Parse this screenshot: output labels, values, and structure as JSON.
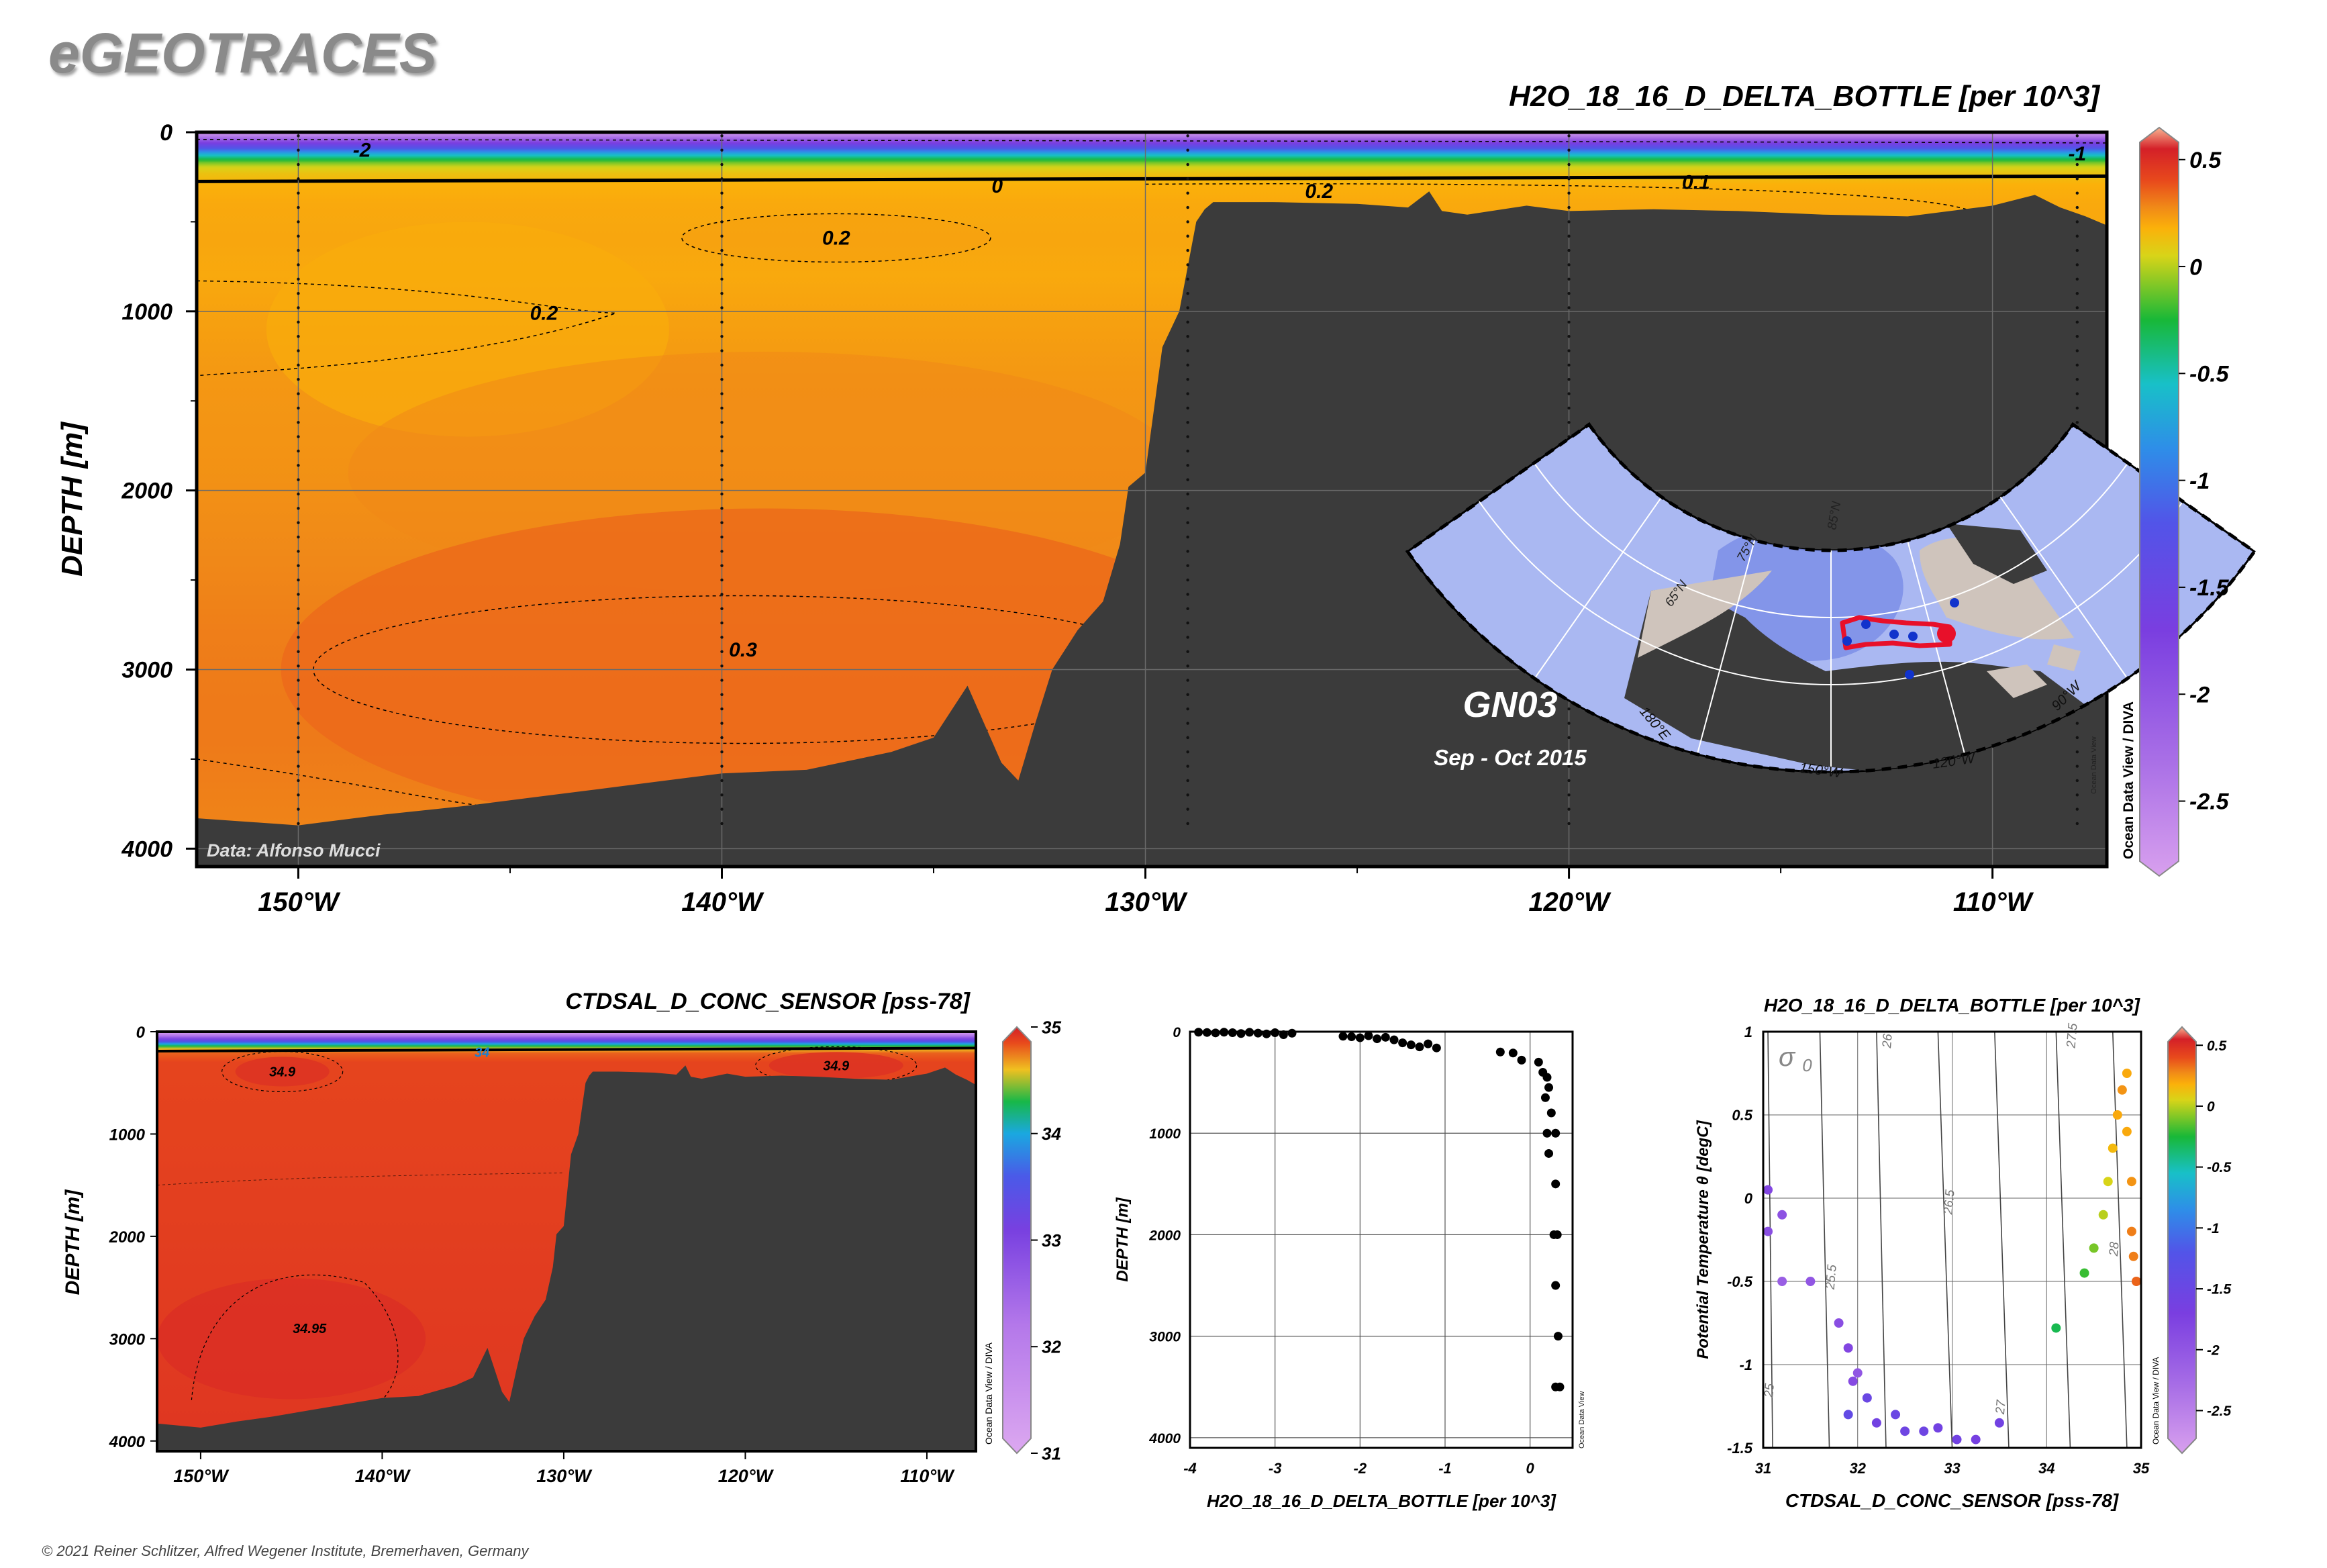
{
  "brand": "eGEOTRACES",
  "copyright": "© 2021 Reiner Schlitzer, Alfred Wegener Institute, Bremerhaven, Germany",
  "watermark": "Ocean Data View / DIVA",
  "watermark_small": "Ocean Data View",
  "colors": {
    "land": "#3b3b3b",
    "frame": "#000000",
    "grid": "#7a7a7a",
    "map_ocean": "#aab8f2",
    "map_land": "#cfc4bc",
    "map_track": "#e8102a",
    "station_dot": "#1133cc"
  },
  "colormaps": {
    "delta": {
      "stops": [
        {
          "v": -2.85,
          "c": "#d8a0ee"
        },
        {
          "v": -2.3,
          "c": "#a86ee6"
        },
        {
          "v": -1.7,
          "c": "#7a3ee0"
        },
        {
          "v": -1.2,
          "c": "#5254e8"
        },
        {
          "v": -0.85,
          "c": "#2e8ee8"
        },
        {
          "v": -0.55,
          "c": "#18c0c8"
        },
        {
          "v": -0.25,
          "c": "#18b838"
        },
        {
          "v": 0.05,
          "c": "#d8d418"
        },
        {
          "v": 0.18,
          "c": "#fbb10a"
        },
        {
          "v": 0.28,
          "c": "#f08818"
        },
        {
          "v": 0.4,
          "c": "#e84a1c"
        },
        {
          "v": 0.55,
          "c": "#d42028"
        },
        {
          "v": 0.65,
          "c": "#f8b492"
        }
      ]
    },
    "salinity": {
      "stops": [
        {
          "v": 31,
          "c": "#dca8f0"
        },
        {
          "v": 32.2,
          "c": "#b478ea"
        },
        {
          "v": 33.1,
          "c": "#7840e0"
        },
        {
          "v": 33.6,
          "c": "#4a5ae8"
        },
        {
          "v": 34.0,
          "c": "#1aa8e0"
        },
        {
          "v": 34.3,
          "c": "#18b848"
        },
        {
          "v": 34.6,
          "c": "#f0c020"
        },
        {
          "v": 34.85,
          "c": "#e84a1c"
        },
        {
          "v": 35,
          "c": "#d42028"
        }
      ]
    }
  },
  "section_main": {
    "title": "H2O_18_16_D_DELTA_BOTTLE [per 10^3]",
    "ylabel": "DEPTH [m]",
    "cruise": "GN03",
    "date": "Sep - Oct 2015",
    "data_credit": "Data: Alfonso Mucci",
    "x_ticks": [
      {
        "lon": -150,
        "label": "150°W"
      },
      {
        "lon": -140,
        "label": "140°W"
      },
      {
        "lon": -130,
        "label": "130°W"
      },
      {
        "lon": -120,
        "label": "120°W"
      },
      {
        "lon": -110,
        "label": "110°W"
      }
    ],
    "y_ticks": [
      {
        "d": 0,
        "label": "0"
      },
      {
        "d": 1000,
        "label": "1000"
      },
      {
        "d": 2000,
        "label": "2000"
      },
      {
        "d": 3000,
        "label": "3000"
      },
      {
        "d": 4000,
        "label": "4000"
      }
    ],
    "contour_labels": [
      {
        "text": "-2",
        "lon": -148.5,
        "d": 100
      },
      {
        "text": "0",
        "lon": -133.5,
        "d": 300
      },
      {
        "text": "0.2",
        "lon": -137.3,
        "d": 590
      },
      {
        "text": "0.2",
        "lon": -144.2,
        "d": 1010
      },
      {
        "text": "0.2",
        "lon": -125.9,
        "d": 330
      },
      {
        "text": "0.1",
        "lon": -117.0,
        "d": 280
      },
      {
        "text": "0.3",
        "lon": -139.5,
        "d": 2890
      },
      {
        "text": "-1",
        "lon": -108.0,
        "d": 120
      }
    ],
    "colorbar_ticks": [
      {
        "v": 0.5,
        "label": "0.5"
      },
      {
        "v": 0,
        "label": "0"
      },
      {
        "v": -0.5,
        "label": "-0.5"
      },
      {
        "v": -1,
        "label": "-1"
      },
      {
        "v": -1.5,
        "label": "-1.5"
      },
      {
        "v": -2,
        "label": "-2"
      },
      {
        "v": -2.5,
        "label": "-2.5"
      }
    ]
  },
  "inset_map": {
    "lat_labels": [
      {
        "text": "85°N"
      },
      {
        "text": "75°N"
      },
      {
        "text": "65°N"
      }
    ],
    "lon_labels": [
      {
        "text": "180°E"
      },
      {
        "text": "150°W"
      },
      {
        "text": "120°W"
      },
      {
        "text": "90°W"
      }
    ]
  },
  "section_sal": {
    "title": "CTDSAL_D_CONC_SENSOR [pss-78]",
    "ylabel": "DEPTH [m]",
    "x_ticks": [
      {
        "lon": -150,
        "label": "150°W"
      },
      {
        "lon": -140,
        "label": "140°W"
      },
      {
        "lon": -130,
        "label": "130°W"
      },
      {
        "lon": -120,
        "label": "120°W"
      },
      {
        "lon": -110,
        "label": "110°W"
      }
    ],
    "y_ticks": [
      {
        "d": 0,
        "label": "0"
      },
      {
        "d": 1000,
        "label": "1000"
      },
      {
        "d": 2000,
        "label": "2000"
      },
      {
        "d": 3000,
        "label": "3000"
      },
      {
        "d": 4000,
        "label": "4000"
      }
    ],
    "contour_labels": [
      {
        "text": "34",
        "lon": -134.5,
        "d": 200
      },
      {
        "text": "34.9",
        "lon": -145.5,
        "d": 390
      },
      {
        "text": "34.9",
        "lon": -115.0,
        "d": 330
      },
      {
        "text": "34.95",
        "lon": -144.0,
        "d": 2900
      }
    ],
    "colorbar_ticks": [
      {
        "v": 35,
        "label": "35"
      },
      {
        "v": 34,
        "label": "34"
      },
      {
        "v": 33,
        "label": "33"
      },
      {
        "v": 32,
        "label": "32"
      },
      {
        "v": 31,
        "label": "31"
      }
    ]
  },
  "profile": {
    "xlabel": "H2O_18_16_D_DELTA_BOTTLE [per 10^3]",
    "ylabel": "DEPTH [m]",
    "x_ticks": [
      {
        "v": -4,
        "label": "-4"
      },
      {
        "v": -3,
        "label": "-3"
      },
      {
        "v": -2,
        "label": "-2"
      },
      {
        "v": -1,
        "label": "-1"
      },
      {
        "v": 0,
        "label": "0"
      }
    ],
    "y_ticks": [
      {
        "d": 0,
        "label": "0"
      },
      {
        "d": 1000,
        "label": "1000"
      },
      {
        "d": 2000,
        "label": "2000"
      },
      {
        "d": 3000,
        "label": "3000"
      },
      {
        "d": 4000,
        "label": "4000"
      }
    ]
  },
  "ts_plot": {
    "title": "H2O_18_16_D_DELTA_BOTTLE [per 10^3]",
    "xlabel": "CTDSAL_D_CONC_SENSOR [pss-78]",
    "ylabel": "Potential Temperature θ [degC]",
    "sigma_label": "σ",
    "sigma_sub": "0",
    "x_ticks": [
      {
        "v": 31,
        "label": "31"
      },
      {
        "v": 32,
        "label": "32"
      },
      {
        "v": 33,
        "label": "33"
      },
      {
        "v": 34,
        "label": "34"
      },
      {
        "v": 35,
        "label": "35"
      }
    ],
    "y_ticks": [
      {
        "v": 1,
        "label": "1"
      },
      {
        "v": 0.5,
        "label": "0.5"
      },
      {
        "v": 0,
        "label": "0"
      },
      {
        "v": -0.5,
        "label": "-0.5"
      },
      {
        "v": -1,
        "label": "-1"
      },
      {
        "v": -1.5,
        "label": "-1.5"
      }
    ],
    "isopycnal_labels": [
      {
        "text": "25",
        "s": 31.1,
        "t": -1.2
      },
      {
        "text": "25.5",
        "s": 31.75,
        "t": -0.55
      },
      {
        "text": "26",
        "s": 32.35,
        "t": 0.9
      },
      {
        "text": "26.5",
        "s": 33.0,
        "t": -0.1
      },
      {
        "text": "27",
        "s": 33.55,
        "t": -1.3
      },
      {
        "text": "27.5",
        "s": 34.3,
        "t": 0.9
      },
      {
        "text": "28",
        "s": 34.75,
        "t": -0.35
      }
    ],
    "colorbar_ticks": [
      {
        "v": 0.5,
        "label": "0.5"
      },
      {
        "v": 0,
        "label": "0"
      },
      {
        "v": -0.5,
        "label": "-0.5"
      },
      {
        "v": -1,
        "label": "-1"
      },
      {
        "v": -1.5,
        "label": "-1.5"
      },
      {
        "v": -2,
        "label": "-2"
      },
      {
        "v": -2.5,
        "label": "-2.5"
      }
    ]
  },
  "chart_data": [
    {
      "type": "heatmap",
      "title": "H2O_18_16_D_DELTA_BOTTLE [per 10^3]",
      "ylabel": "DEPTH [m]",
      "xlim": [
        -152.4,
        -107.3
      ],
      "ylim": [
        4100,
        0
      ],
      "grid": true,
      "stations_lon": [
        -150,
        -140,
        -129,
        -120,
        -108
      ],
      "bathymetry": {
        "lon": [
          -152.4,
          -150,
          -148,
          -146,
          -144,
          -142,
          -140,
          -138,
          -136,
          -135,
          -134.2,
          -133.4,
          -133.0,
          -132.6,
          -132.2,
          -131.6,
          -131.0,
          -130.6,
          -130.4,
          -130.0,
          -129.6,
          -129.2,
          -128.8,
          -128.6,
          -128.4,
          -127,
          -125,
          -123.8,
          -123.3,
          -123.0,
          -122.4,
          -121,
          -120,
          -118,
          -116,
          -114,
          -112,
          -110,
          -109,
          -108.4,
          -107.8,
          -107.3
        ],
        "depth": [
          3830,
          3870,
          3810,
          3760,
          3700,
          3640,
          3580,
          3560,
          3460,
          3380,
          3090,
          3520,
          3620,
          3300,
          3000,
          2780,
          2620,
          2300,
          1980,
          1900,
          1200,
          1000,
          500,
          430,
          390,
          390,
          400,
          420,
          330,
          440,
          460,
          410,
          440,
          430,
          440,
          460,
          470,
          410,
          350,
          420,
          470,
          520
        ]
      },
      "contours": [
        {
          "value": -2,
          "note": "near surface"
        },
        {
          "value": -1,
          "note": "near surface"
        },
        {
          "value": 0,
          "depth_m": 260
        },
        {
          "value": 0.1,
          "depth_m": 280
        },
        {
          "value": 0.2,
          "depth_m": 590
        },
        {
          "value": 0.3,
          "depth_m": 3000
        }
      ],
      "colorbar": {
        "range": [
          -2.85,
          0.65
        ]
      }
    },
    {
      "type": "heatmap",
      "title": "CTDSAL_D_CONC_SENSOR [pss-78]",
      "ylabel": "DEPTH [m]",
      "xlim": [
        -152.4,
        -107.3
      ],
      "ylim": [
        4100,
        0
      ],
      "contours": [
        {
          "value": 34,
          "depth_m": 180
        },
        {
          "value": 34.9,
          "depth_m": 390
        },
        {
          "value": 34.95,
          "depth_m": 2900
        }
      ],
      "colorbar": {
        "range": [
          31,
          35
        ]
      }
    },
    {
      "type": "scatter",
      "xlabel": "H2O_18_16_D_DELTA_BOTTLE [per 10^3]",
      "ylabel": "DEPTH [m]",
      "xlim": [
        -4,
        0.5
      ],
      "ylim": [
        4100,
        0
      ],
      "points": [
        {
          "x": -3.9,
          "y": 5
        },
        {
          "x": -3.8,
          "y": 8
        },
        {
          "x": -3.7,
          "y": 12
        },
        {
          "x": -3.6,
          "y": 5
        },
        {
          "x": -3.5,
          "y": 10
        },
        {
          "x": -3.4,
          "y": 18
        },
        {
          "x": -3.3,
          "y": 6
        },
        {
          "x": -3.2,
          "y": 14
        },
        {
          "x": -3.1,
          "y": 22
        },
        {
          "x": -3.0,
          "y": 10
        },
        {
          "x": -2.9,
          "y": 30
        },
        {
          "x": -2.8,
          "y": 15
        },
        {
          "x": -2.2,
          "y": 45
        },
        {
          "x": -2.1,
          "y": 50
        },
        {
          "x": -2.0,
          "y": 60
        },
        {
          "x": -1.9,
          "y": 40
        },
        {
          "x": -1.8,
          "y": 70
        },
        {
          "x": -1.7,
          "y": 55
        },
        {
          "x": -1.6,
          "y": 80
        },
        {
          "x": -1.5,
          "y": 110
        },
        {
          "x": -1.4,
          "y": 130
        },
        {
          "x": -1.3,
          "y": 150
        },
        {
          "x": -1.2,
          "y": 120
        },
        {
          "x": -1.1,
          "y": 160
        },
        {
          "x": -0.35,
          "y": 200
        },
        {
          "x": -0.2,
          "y": 210
        },
        {
          "x": -0.1,
          "y": 280
        },
        {
          "x": 0.1,
          "y": 300
        },
        {
          "x": 0.15,
          "y": 400
        },
        {
          "x": 0.2,
          "y": 450
        },
        {
          "x": 0.22,
          "y": 550
        },
        {
          "x": 0.18,
          "y": 650
        },
        {
          "x": 0.25,
          "y": 800
        },
        {
          "x": 0.2,
          "y": 1000
        },
        {
          "x": 0.22,
          "y": 1200
        },
        {
          "x": 0.3,
          "y": 1000
        },
        {
          "x": 0.3,
          "y": 1500
        },
        {
          "x": 0.28,
          "y": 2000
        },
        {
          "x": 0.32,
          "y": 2000
        },
        {
          "x": 0.3,
          "y": 2500
        },
        {
          "x": 0.33,
          "y": 3000
        },
        {
          "x": 0.3,
          "y": 3500
        },
        {
          "x": 0.35,
          "y": 3500
        }
      ]
    },
    {
      "type": "scatter",
      "title": "H2O_18_16_D_DELTA_BOTTLE [per 10^3]",
      "xlabel": "CTDSAL_D_CONC_SENSOR [pss-78]",
      "ylabel": "Potential Temperature θ [degC]",
      "xlim": [
        31,
        35
      ],
      "ylim": [
        -1.5,
        1
      ],
      "isopycnals": [
        25,
        25.5,
        26,
        26.5,
        27,
        27.5,
        28
      ],
      "points": [
        {
          "s": 31.05,
          "t": 0.05,
          "v": -1.8
        },
        {
          "s": 31.05,
          "t": -0.2,
          "v": -1.9
        },
        {
          "s": 31.2,
          "t": -0.1,
          "v": -1.95
        },
        {
          "s": 31.2,
          "t": -0.5,
          "v": -2.1
        },
        {
          "s": 31.5,
          "t": -0.5,
          "v": -2.0
        },
        {
          "s": 31.8,
          "t": -0.75,
          "v": -1.9
        },
        {
          "s": 31.9,
          "t": -0.9,
          "v": -1.8
        },
        {
          "s": 31.95,
          "t": -1.1,
          "v": -1.85
        },
        {
          "s": 32.0,
          "t": -1.05,
          "v": -2.0
        },
        {
          "s": 32.1,
          "t": -1.2,
          "v": -1.5
        },
        {
          "s": 31.9,
          "t": -1.3,
          "v": -1.4
        },
        {
          "s": 32.2,
          "t": -1.35,
          "v": -1.6
        },
        {
          "s": 32.4,
          "t": -1.3,
          "v": -1.5
        },
        {
          "s": 32.5,
          "t": -1.4,
          "v": -1.55
        },
        {
          "s": 32.7,
          "t": -1.4,
          "v": -1.55
        },
        {
          "s": 32.85,
          "t": -1.38,
          "v": -1.6
        },
        {
          "s": 33.05,
          "t": -1.45,
          "v": -1.6
        },
        {
          "s": 33.25,
          "t": -1.45,
          "v": -1.65
        },
        {
          "s": 33.5,
          "t": -1.35,
          "v": -1.6
        },
        {
          "s": 34.1,
          "t": -0.78,
          "v": -0.3
        },
        {
          "s": 34.4,
          "t": -0.45,
          "v": -0.2
        },
        {
          "s": 34.5,
          "t": -0.3,
          "v": -0.1
        },
        {
          "s": 34.6,
          "t": -0.1,
          "v": 0.0
        },
        {
          "s": 34.65,
          "t": 0.1,
          "v": 0.05
        },
        {
          "s": 34.7,
          "t": 0.3,
          "v": 0.15
        },
        {
          "s": 34.75,
          "t": 0.5,
          "v": 0.2
        },
        {
          "s": 34.8,
          "t": 0.65,
          "v": 0.25
        },
        {
          "s": 34.85,
          "t": 0.75,
          "v": 0.2
        },
        {
          "s": 34.85,
          "t": 0.4,
          "v": 0.2
        },
        {
          "s": 34.9,
          "t": 0.1,
          "v": 0.25
        },
        {
          "s": 34.9,
          "t": -0.2,
          "v": 0.3
        },
        {
          "s": 34.92,
          "t": -0.35,
          "v": 0.3
        },
        {
          "s": 34.95,
          "t": -0.5,
          "v": 0.35
        }
      ],
      "colorbar": {
        "range": [
          -2.85,
          0.65
        ]
      }
    }
  ]
}
